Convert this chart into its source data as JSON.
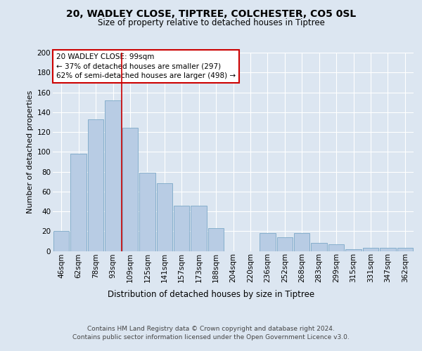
{
  "title1": "20, WADLEY CLOSE, TIPTREE, COLCHESTER, CO5 0SL",
  "title2": "Size of property relative to detached houses in Tiptree",
  "xlabel": "Distribution of detached houses by size in Tiptree",
  "ylabel": "Number of detached properties",
  "categories": [
    "46sqm",
    "62sqm",
    "78sqm",
    "93sqm",
    "109sqm",
    "125sqm",
    "141sqm",
    "157sqm",
    "173sqm",
    "188sqm",
    "204sqm",
    "220sqm",
    "236sqm",
    "252sqm",
    "268sqm",
    "283sqm",
    "299sqm",
    "315sqm",
    "331sqm",
    "347sqm",
    "362sqm"
  ],
  "values": [
    20,
    98,
    133,
    152,
    124,
    79,
    68,
    46,
    46,
    23,
    0,
    0,
    18,
    14,
    18,
    8,
    7,
    2,
    3,
    3,
    3
  ],
  "bar_color": "#b8cce4",
  "bar_edge_color": "#7ba7c7",
  "background_color": "#dce6f1",
  "plot_bg_color": "#dce6f1",
  "grid_color": "#ffffff",
  "annotation_line1": "20 WADLEY CLOSE: 99sqm",
  "annotation_line2": "← 37% of detached houses are smaller (297)",
  "annotation_line3": "62% of semi-detached houses are larger (498) →",
  "annotation_box_color": "#ffffff",
  "annotation_box_edge_color": "#cc0000",
  "vline_color": "#cc0000",
  "ylim": [
    0,
    200
  ],
  "yticks": [
    0,
    20,
    40,
    60,
    80,
    100,
    120,
    140,
    160,
    180,
    200
  ],
  "footnote1": "Contains HM Land Registry data © Crown copyright and database right 2024.",
  "footnote2": "Contains public sector information licensed under the Open Government Licence v3.0.",
  "title1_fontsize": 10,
  "title2_fontsize": 8.5,
  "xlabel_fontsize": 8.5,
  "ylabel_fontsize": 8,
  "tick_fontsize": 7.5,
  "annotation_fontsize": 7.5,
  "footnote_fontsize": 6.5
}
